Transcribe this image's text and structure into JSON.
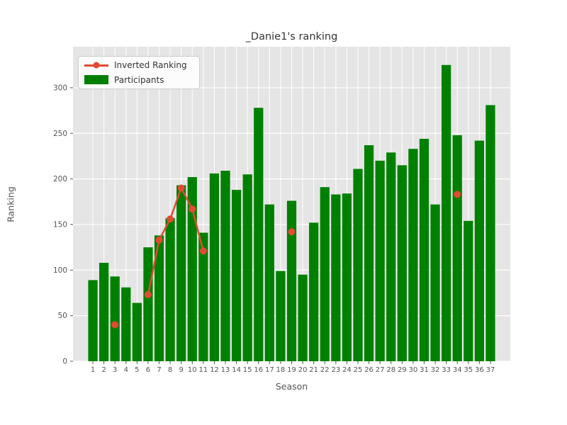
{
  "figure": {
    "background": "#ffffff",
    "plot_background": "#e5e5e5",
    "grid_color": "#ffffff",
    "tick_text_color": "#555555",
    "title_color": "#333333"
  },
  "chart_data": {
    "type": "bar+line",
    "title": "_Danie1's ranking",
    "xlabel": "Season",
    "ylabel": "Ranking",
    "categories": [
      1,
      2,
      3,
      4,
      5,
      6,
      7,
      8,
      9,
      10,
      11,
      12,
      13,
      14,
      15,
      16,
      17,
      18,
      19,
      20,
      21,
      22,
      23,
      24,
      25,
      26,
      27,
      28,
      29,
      30,
      31,
      32,
      33,
      34,
      35,
      36,
      37
    ],
    "yticks": [
      0,
      50,
      100,
      150,
      200,
      250,
      300
    ],
    "ylim": [
      0,
      345
    ],
    "grid": true,
    "legend_position": "upper left",
    "series": [
      {
        "name": "Inverted Ranking",
        "type": "line",
        "color": "#E24A33",
        "values": [
          null,
          null,
          40,
          null,
          null,
          73,
          133,
          156,
          190,
          167,
          121,
          null,
          null,
          null,
          null,
          null,
          null,
          null,
          142,
          null,
          null,
          null,
          null,
          null,
          null,
          null,
          null,
          null,
          null,
          null,
          null,
          null,
          null,
          183,
          null,
          null,
          null
        ]
      },
      {
        "name": "Participants",
        "type": "bar",
        "color": "#008000",
        "values": [
          89,
          108,
          93,
          81,
          64,
          125,
          138,
          157,
          193,
          202,
          141,
          206,
          209,
          188,
          205,
          278,
          172,
          99,
          176,
          95,
          152,
          191,
          183,
          184,
          211,
          237,
          220,
          229,
          215,
          233,
          244,
          172,
          325,
          248,
          154,
          242,
          281
        ]
      }
    ]
  }
}
